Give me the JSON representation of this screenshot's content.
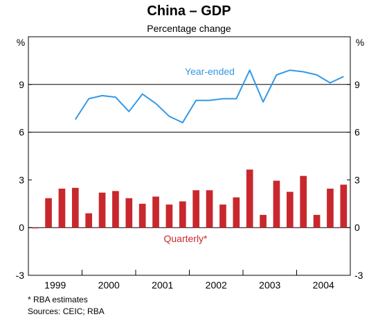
{
  "chart_data": {
    "type": "bar",
    "title": "China – GDP",
    "subtitle": "Percentage change",
    "unit_left": "%",
    "unit_right": "%",
    "ylim": [
      -3,
      12
    ],
    "yticks": [
      -3,
      0,
      3,
      6,
      9
    ],
    "grid_y": [
      6,
      9
    ],
    "years": [
      "1999",
      "2000",
      "2001",
      "2002",
      "2003",
      "2004"
    ],
    "colors": {
      "line": "#3399e6",
      "bars": "#c8282d"
    },
    "series": [
      {
        "name": "Year-ended",
        "type": "line",
        "start_index": 3,
        "values": [
          6.8,
          8.1,
          8.3,
          8.2,
          7.3,
          8.4,
          7.8,
          7.0,
          6.6,
          8.0,
          8.0,
          8.1,
          8.1,
          9.9,
          7.9,
          9.6,
          9.9,
          9.8,
          9.6,
          9.1,
          9.5
        ]
      },
      {
        "name": "Quarterly*",
        "type": "bar",
        "values": [
          -0.05,
          1.85,
          2.45,
          2.5,
          0.9,
          2.2,
          2.3,
          1.85,
          1.5,
          1.95,
          1.45,
          1.65,
          2.35,
          2.35,
          1.45,
          1.9,
          3.65,
          0.8,
          2.95,
          2.25,
          3.25,
          0.8,
          2.45,
          2.7
        ]
      }
    ],
    "notes": [
      "*  RBA estimates",
      "Sources: CEIC; RBA"
    ]
  }
}
